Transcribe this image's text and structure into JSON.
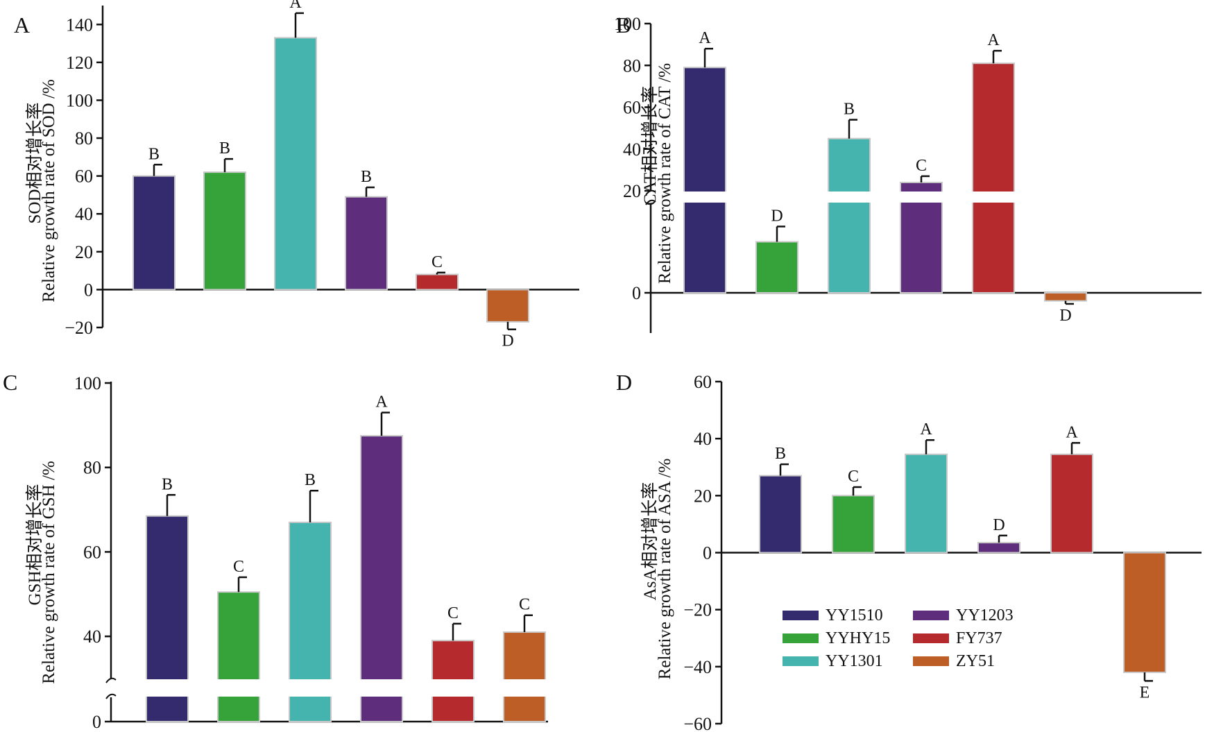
{
  "chart_data": [
    {
      "panel": "A",
      "type": "bar",
      "ylabel_cn": "SOD相对增长率",
      "ylabel_en": "Relative growth rate of SOD /%",
      "categories": [
        "YY1510",
        "YYHY15",
        "YY1301",
        "YY1203",
        "FY737",
        "ZY51"
      ],
      "values": [
        60,
        62,
        133,
        49,
        8,
        -17
      ],
      "errors": [
        6,
        7,
        13,
        5,
        1,
        4
      ],
      "letters": [
        "B",
        "B",
        "A",
        "B",
        "C",
        "D"
      ],
      "ylim": [
        -20,
        150
      ],
      "yticks": [
        -20,
        0,
        20,
        40,
        60,
        80,
        100,
        120,
        140
      ],
      "ytick_labels": [
        "−20",
        "0",
        "20",
        "40",
        "60",
        "80",
        "100",
        "120",
        "140"
      ]
    },
    {
      "panel": "B",
      "type": "bar",
      "ylabel_cn": "CAT相对增长率",
      "ylabel_en": "Relative growth rate of CAT /%",
      "categories": [
        "YY1510",
        "YYHY15",
        "YY1301",
        "YY1203",
        "FY737",
        "ZY51"
      ],
      "values": [
        79,
        10,
        45,
        24,
        81,
        -4
      ],
      "errors": [
        9,
        3,
        9,
        3,
        6,
        1.5
      ],
      "letters": [
        "A",
        "D",
        "B",
        "C",
        "A",
        "D"
      ],
      "axis_break": true,
      "yticks": [
        0,
        20,
        40,
        60,
        80,
        100
      ],
      "ytick_labels": [
        "0",
        "20",
        "40",
        "60",
        "80",
        "100"
      ]
    },
    {
      "panel": "C",
      "type": "bar",
      "ylabel_cn": "GSH相对增长率",
      "ylabel_en": "Relative growth rate of GSH /%",
      "categories": [
        "YY1510",
        "YYHY15",
        "YY1301",
        "YY1203",
        "FY737",
        "ZY51"
      ],
      "values": [
        68.5,
        50.5,
        67,
        87.5,
        39,
        41
      ],
      "errors": [
        5,
        3.5,
        7.5,
        5.5,
        4,
        4
      ],
      "letters": [
        "B",
        "C",
        "B",
        "A",
        "C",
        "C"
      ],
      "axis_break": true,
      "yticks": [
        0,
        40,
        60,
        80,
        100
      ],
      "ytick_labels": [
        "0",
        "40",
        "60",
        "80",
        "100"
      ]
    },
    {
      "panel": "D",
      "type": "bar",
      "ylabel_cn": "AsA相对增长率",
      "ylabel_en": "Relative growth rate of ASA /%",
      "categories": [
        "YY1510",
        "YYHY15",
        "YY1301",
        "YY1203",
        "FY737",
        "ZY51"
      ],
      "values": [
        27,
        20,
        34.5,
        3.5,
        34.5,
        -42
      ],
      "errors": [
        4,
        3,
        5,
        2.5,
        4,
        3
      ],
      "letters": [
        "B",
        "C",
        "A",
        "D",
        "A",
        "E"
      ],
      "ylim": [
        -60,
        60
      ],
      "yticks": [
        -60,
        -40,
        -20,
        0,
        20,
        40,
        60
      ],
      "ytick_labels": [
        "−60",
        "−40",
        "−20",
        "0",
        "20",
        "40",
        "60"
      ]
    }
  ],
  "legend": [
    {
      "name": "YY1510",
      "color": "#342a6e"
    },
    {
      "name": "YYHY15",
      "color": "#36a33a"
    },
    {
      "name": "YY1301",
      "color": "#45b3ae"
    },
    {
      "name": "YY1203",
      "color": "#5e2d7b"
    },
    {
      "name": "FY737",
      "color": "#b52a2d"
    },
    {
      "name": "ZY51",
      "color": "#bd5e26"
    }
  ]
}
